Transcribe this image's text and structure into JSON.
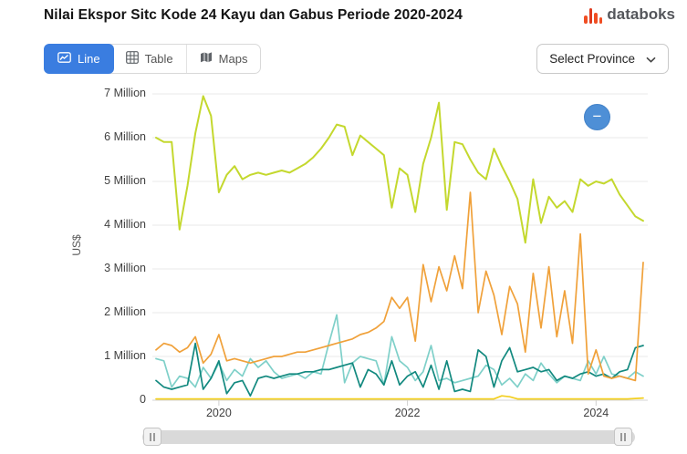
{
  "header": {
    "title": "Nilai Ekspor Sitc Kode 24 Kayu dan Gabus Periode 2020-2024",
    "brand": "databoks"
  },
  "toolbar": {
    "views": [
      {
        "label": "Line",
        "active": true
      },
      {
        "label": "Table",
        "active": false
      },
      {
        "label": "Maps",
        "active": false
      }
    ],
    "province_select": {
      "label": "Select Province"
    }
  },
  "controls": {
    "zoom_out_glyph": "−"
  },
  "colors": {
    "active_view_button": "#3a7de0",
    "zoom_button": "#4e8fd6",
    "gridline": "#e8e8e8"
  },
  "chart_data": {
    "type": "line",
    "title": "Nilai Ekspor Sitc Kode 24 Kayu dan Gabus Periode 2020-2024",
    "ylabel": "US$",
    "unit": "US$ million",
    "ymax_millions": 7,
    "ylim": [
      0,
      7000000
    ],
    "grid": "horizontal",
    "legend": false,
    "y_ticks": [
      "7 Million",
      "6 Million",
      "5 Million",
      "4 Million",
      "3 Million",
      "2 Million",
      "1 Million",
      "0"
    ],
    "x_ticks": [
      "2020",
      "2022",
      "2024"
    ],
    "x_tick_indices": [
      8,
      32,
      56
    ],
    "n_points": 63,
    "series": [
      {
        "name": "series-yellow",
        "color": "#f3cf1f",
        "values_millions": [
          0.03,
          0.03,
          0.03,
          0.03,
          0.03,
          0.03,
          0.03,
          0.03,
          0.03,
          0.03,
          0.03,
          0.03,
          0.03,
          0.03,
          0.03,
          0.03,
          0.03,
          0.03,
          0.03,
          0.03,
          0.03,
          0.03,
          0.03,
          0.03,
          0.03,
          0.03,
          0.03,
          0.03,
          0.03,
          0.03,
          0.03,
          0.03,
          0.03,
          0.03,
          0.03,
          0.03,
          0.03,
          0.03,
          0.03,
          0.03,
          0.03,
          0.03,
          0.03,
          0.03,
          0.1,
          0.08,
          0.03,
          0.03,
          0.03,
          0.03,
          0.03,
          0.03,
          0.03,
          0.03,
          0.03,
          0.03,
          0.03,
          0.03,
          0.03,
          0.03,
          0.03,
          0.04,
          0.05
        ]
      },
      {
        "name": "series-cyan",
        "color": "#7fd0c9",
        "values_millions": [
          0.95,
          0.9,
          0.3,
          0.55,
          0.5,
          0.3,
          0.75,
          0.5,
          0.85,
          0.45,
          0.7,
          0.55,
          0.95,
          0.75,
          0.9,
          0.65,
          0.5,
          0.55,
          0.6,
          0.5,
          0.65,
          0.6,
          1.3,
          1.95,
          0.4,
          0.85,
          1.0,
          0.95,
          0.9,
          0.35,
          1.45,
          0.9,
          0.75,
          0.45,
          0.65,
          1.25,
          0.45,
          0.5,
          0.4,
          0.45,
          0.5,
          0.55,
          0.8,
          0.7,
          0.35,
          0.5,
          0.3,
          0.6,
          0.45,
          0.85,
          0.6,
          0.4,
          0.55,
          0.5,
          0.45,
          0.9,
          0.6,
          1.0,
          0.6,
          0.55,
          0.5,
          0.65,
          0.55
        ]
      },
      {
        "name": "series-teal",
        "color": "#12897f",
        "values_millions": [
          0.45,
          0.3,
          0.25,
          0.3,
          0.35,
          1.3,
          0.25,
          0.5,
          0.9,
          0.15,
          0.4,
          0.45,
          0.1,
          0.5,
          0.55,
          0.5,
          0.55,
          0.6,
          0.6,
          0.65,
          0.65,
          0.7,
          0.7,
          0.75,
          0.8,
          0.85,
          0.3,
          0.7,
          0.6,
          0.35,
          0.9,
          0.35,
          0.55,
          0.65,
          0.3,
          0.8,
          0.25,
          0.9,
          0.2,
          0.25,
          0.2,
          1.15,
          1.0,
          0.3,
          0.9,
          1.2,
          0.65,
          0.7,
          0.75,
          0.65,
          0.7,
          0.45,
          0.55,
          0.5,
          0.6,
          0.65,
          0.55,
          0.6,
          0.5,
          0.65,
          0.7,
          1.2,
          1.25
        ]
      },
      {
        "name": "series-orange",
        "color": "#f0a13a",
        "values_millions": [
          1.15,
          1.3,
          1.25,
          1.1,
          1.2,
          1.45,
          0.85,
          1.05,
          1.5,
          0.9,
          0.95,
          0.9,
          0.85,
          0.9,
          0.95,
          1.0,
          1.0,
          1.05,
          1.1,
          1.1,
          1.15,
          1.2,
          1.25,
          1.3,
          1.35,
          1.4,
          1.5,
          1.55,
          1.65,
          1.8,
          2.35,
          2.1,
          2.35,
          1.35,
          3.1,
          2.25,
          3.05,
          2.5,
          3.3,
          2.55,
          4.75,
          2.0,
          2.95,
          2.4,
          1.5,
          2.6,
          2.2,
          1.1,
          2.9,
          1.65,
          3.05,
          1.45,
          2.5,
          1.3,
          3.8,
          0.6,
          1.15,
          0.55,
          0.5,
          0.55,
          0.5,
          0.45,
          3.15
        ]
      },
      {
        "name": "series-lime",
        "color": "#c4d82e",
        "values_millions": [
          6.0,
          5.9,
          5.9,
          3.9,
          4.9,
          6.1,
          6.95,
          6.5,
          4.75,
          5.15,
          5.35,
          5.05,
          5.15,
          5.2,
          5.15,
          5.2,
          5.25,
          5.2,
          5.3,
          5.4,
          5.55,
          5.75,
          6.0,
          6.3,
          6.25,
          5.6,
          6.05,
          5.9,
          5.75,
          5.6,
          4.4,
          5.3,
          5.15,
          4.3,
          5.4,
          6.0,
          6.8,
          4.35,
          5.9,
          5.85,
          5.5,
          5.2,
          5.05,
          5.75,
          5.35,
          5.0,
          4.6,
          3.6,
          5.05,
          4.05,
          4.65,
          4.4,
          4.55,
          4.3,
          5.05,
          4.9,
          5.0,
          4.95,
          5.05,
          4.7,
          4.45,
          4.2,
          4.1
        ]
      }
    ]
  }
}
